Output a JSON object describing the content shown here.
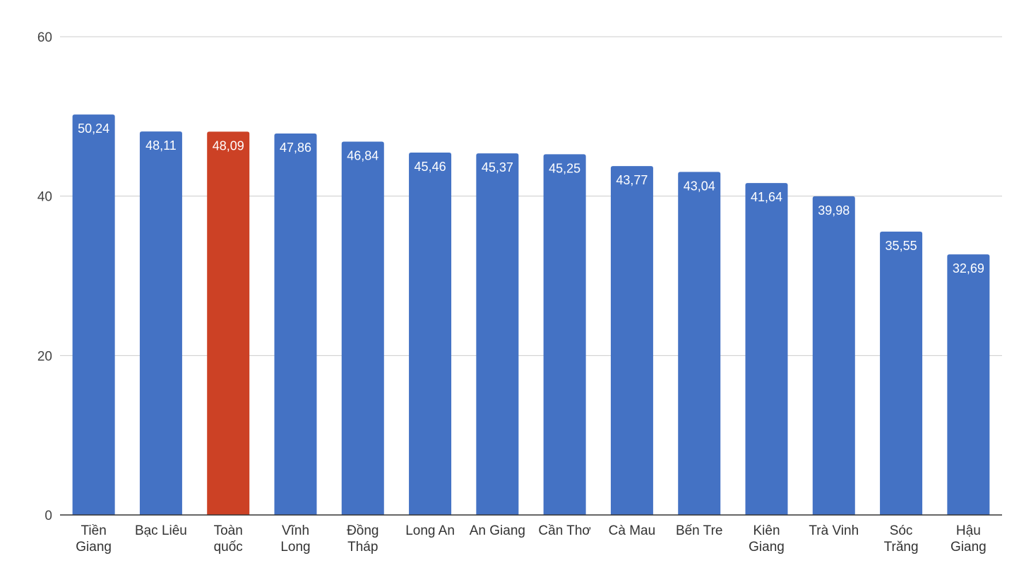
{
  "chart_data": {
    "type": "bar",
    "title": "",
    "xlabel": "",
    "ylabel": "",
    "ylim": [
      0,
      60
    ],
    "yticks": [
      0,
      20,
      40,
      60
    ],
    "grid": true,
    "legend": "none",
    "categories": [
      [
        "Tiền",
        "Giang"
      ],
      [
        "Bạc Liêu"
      ],
      [
        "Toàn",
        "quốc"
      ],
      [
        "Vĩnh",
        "Long"
      ],
      [
        "Đồng",
        "Tháp"
      ],
      [
        "Long An"
      ],
      [
        "An Giang"
      ],
      [
        "Cần Thơ"
      ],
      [
        "Cà Mau"
      ],
      [
        "Bến Tre"
      ],
      [
        "Kiên",
        "Giang"
      ],
      [
        "Trà Vinh"
      ],
      [
        "Sóc",
        "Trăng"
      ],
      [
        "Hậu",
        "Giang"
      ]
    ],
    "values": [
      50.24,
      48.11,
      48.09,
      47.86,
      46.84,
      45.46,
      45.37,
      45.25,
      43.77,
      43.04,
      41.64,
      39.98,
      35.55,
      32.69
    ],
    "value_labels": [
      "50,24",
      "48,11",
      "48,09",
      "47,86",
      "46,84",
      "45,46",
      "45,37",
      "45,25",
      "43,77",
      "43,04",
      "41,64",
      "39,98",
      "35,55",
      "32,69"
    ],
    "colors": [
      "#4472c4",
      "#4472c4",
      "#cc4125",
      "#4472c4",
      "#4472c4",
      "#4472c4",
      "#4472c4",
      "#4472c4",
      "#4472c4",
      "#4472c4",
      "#4472c4",
      "#4472c4",
      "#4472c4",
      "#4472c4"
    ]
  }
}
